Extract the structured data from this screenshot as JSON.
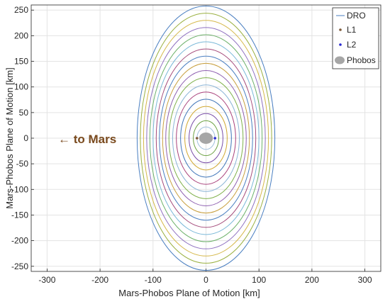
{
  "chart_data": {
    "type": "line",
    "title": "",
    "xlabel": "Mars-Phobos Plane of Motion [km]",
    "ylabel": "Mars-Phobos Plane of Motion [km]",
    "xlim": [
      -330,
      330
    ],
    "ylim": [
      -260,
      260
    ],
    "xticks": [
      -300,
      -200,
      -100,
      0,
      100,
      200,
      300
    ],
    "yticks": [
      -250,
      -200,
      -150,
      -100,
      -50,
      0,
      50,
      100,
      150,
      200,
      250
    ],
    "grid": true,
    "legend_position": "top-right",
    "annotation": "← to Mars",
    "series": [
      {
        "name": "DRO",
        "color": "#4a7fc1"
      },
      {
        "name": "L1",
        "color": "#7e5a3a"
      },
      {
        "name": "L2",
        "color": "#2a2ad0"
      },
      {
        "name": "Phobos",
        "color": "#a6a6a6"
      }
    ],
    "orbits": [
      {
        "a": 130,
        "b": 258,
        "color": "#4a7fc1"
      },
      {
        "a": 124,
        "b": 244,
        "color": "#9ab040"
      },
      {
        "a": 118,
        "b": 230,
        "color": "#d5b84a"
      },
      {
        "a": 112,
        "b": 216,
        "color": "#8e6fc0"
      },
      {
        "a": 106,
        "b": 202,
        "color": "#6db16a"
      },
      {
        "a": 100,
        "b": 188,
        "color": "#7ab8d8"
      },
      {
        "a": 94,
        "b": 174,
        "color": "#a44a7a"
      },
      {
        "a": 88,
        "b": 160,
        "color": "#4a7fc1"
      },
      {
        "a": 82,
        "b": 146,
        "color": "#c8a040"
      },
      {
        "a": 76,
        "b": 132,
        "color": "#8e5fb0"
      },
      {
        "a": 70,
        "b": 118,
        "color": "#7fb04a"
      },
      {
        "a": 63,
        "b": 104,
        "color": "#8ab4d6"
      },
      {
        "a": 56,
        "b": 90,
        "color": "#a8407a"
      },
      {
        "a": 48,
        "b": 76,
        "color": "#3e74b8"
      },
      {
        "a": 40,
        "b": 62,
        "color": "#d0a832"
      },
      {
        "a": 32,
        "b": 48,
        "color": "#7a4fa8"
      },
      {
        "a": 24,
        "b": 34,
        "color": "#6aa040"
      },
      {
        "a": 17,
        "b": 22,
        "color": "#a0c0dc"
      }
    ],
    "phobos": {
      "x": 0,
      "y": 0,
      "rx": 13,
      "ry": 11
    },
    "L1_point": {
      "x": -17,
      "y": 0
    },
    "L2_point": {
      "x": 17,
      "y": 0
    }
  }
}
